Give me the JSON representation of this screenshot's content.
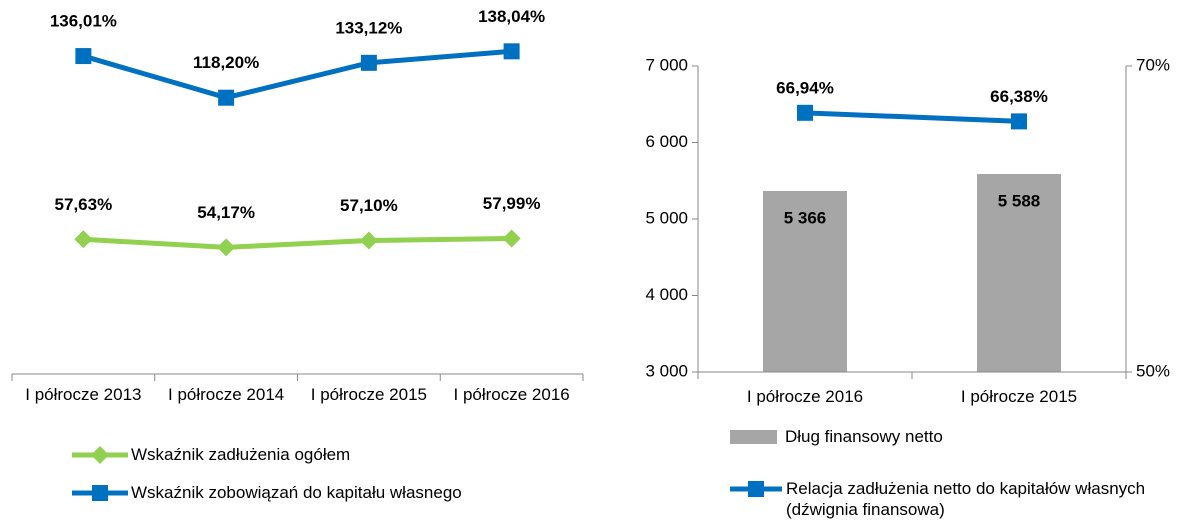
{
  "chart_data": [
    {
      "type": "line",
      "categories": [
        "I półrocze 2013",
        "I półrocze 2014",
        "I półrocze 2015",
        "I półrocze 2016"
      ],
      "ylim": [
        0,
        160
      ],
      "series": [
        {
          "name": "Wskaźnik zadłużenia ogółem",
          "color": "#92d050",
          "marker": "diamond",
          "values": [
            57.63,
            54.17,
            57.1,
            57.99
          ],
          "value_labels": [
            "57,63%",
            "54,17%",
            "57,10%",
            "57,99%"
          ]
        },
        {
          "name": "Wskaźnik zobowiązań do kapitału własnego",
          "color": "#0070c0",
          "marker": "square",
          "values": [
            136.01,
            118.2,
            133.12,
            138.04
          ],
          "value_labels": [
            "136,01%",
            "118,20%",
            "133,12%",
            "138,04%"
          ]
        }
      ]
    },
    {
      "type": "bar_line",
      "categories": [
        "I półrocze 2016",
        "I półrocze 2015"
      ],
      "ylim": [
        3000,
        7000
      ],
      "yticks": [
        {
          "value": 3000,
          "label": "3 000"
        },
        {
          "value": 4000,
          "label": "4 000"
        },
        {
          "value": 5000,
          "label": "5 000"
        },
        {
          "value": 6000,
          "label": "6 000"
        },
        {
          "value": 7000,
          "label": "7 000"
        }
      ],
      "y2lim": [
        50,
        70
      ],
      "y2ticks": [
        {
          "value": 50,
          "label": "50%"
        },
        {
          "value": 70,
          "label": "70%"
        }
      ],
      "series": [
        {
          "name": "Dług finansowy netto",
          "type": "bar",
          "color": "#a6a6a6",
          "values": [
            5366,
            5588
          ],
          "value_labels": [
            "5 366",
            "5 588"
          ]
        },
        {
          "name": "Relacja zadłużenia netto do kapitałów własnych (dźwignia finansowa)",
          "type": "line",
          "axis": "y2",
          "color": "#0070c0",
          "marker": "square",
          "values": [
            66.94,
            66.38
          ],
          "value_labels": [
            "66,94%",
            "66,38%"
          ]
        }
      ]
    }
  ]
}
